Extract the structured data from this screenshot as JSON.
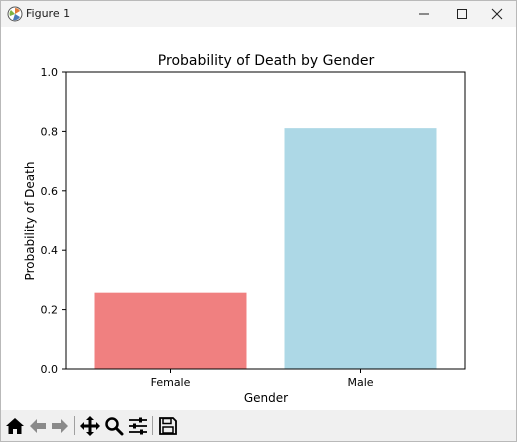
{
  "window": {
    "title": "Figure 1"
  },
  "chart_data": {
    "type": "bar",
    "title": "Probability of Death by Gender",
    "xlabel": "Gender",
    "ylabel": "Probability of Death",
    "categories": [
      "Female",
      "Male"
    ],
    "values": [
      0.257,
      0.811
    ],
    "colors": [
      "#f08080",
      "#add8e6"
    ],
    "ylim": [
      0,
      1.0
    ],
    "yticks": [
      "0.0",
      "0.2",
      "0.4",
      "0.6",
      "0.8",
      "1.0"
    ],
    "ytick_values": [
      0,
      0.2,
      0.4,
      0.6,
      0.8,
      1.0
    ],
    "grid": false
  },
  "toolbar": {
    "icons": [
      "home-icon",
      "back-icon",
      "forward-icon",
      "pan-icon",
      "zoom-icon",
      "configure-subplots-icon",
      "save-icon"
    ]
  }
}
